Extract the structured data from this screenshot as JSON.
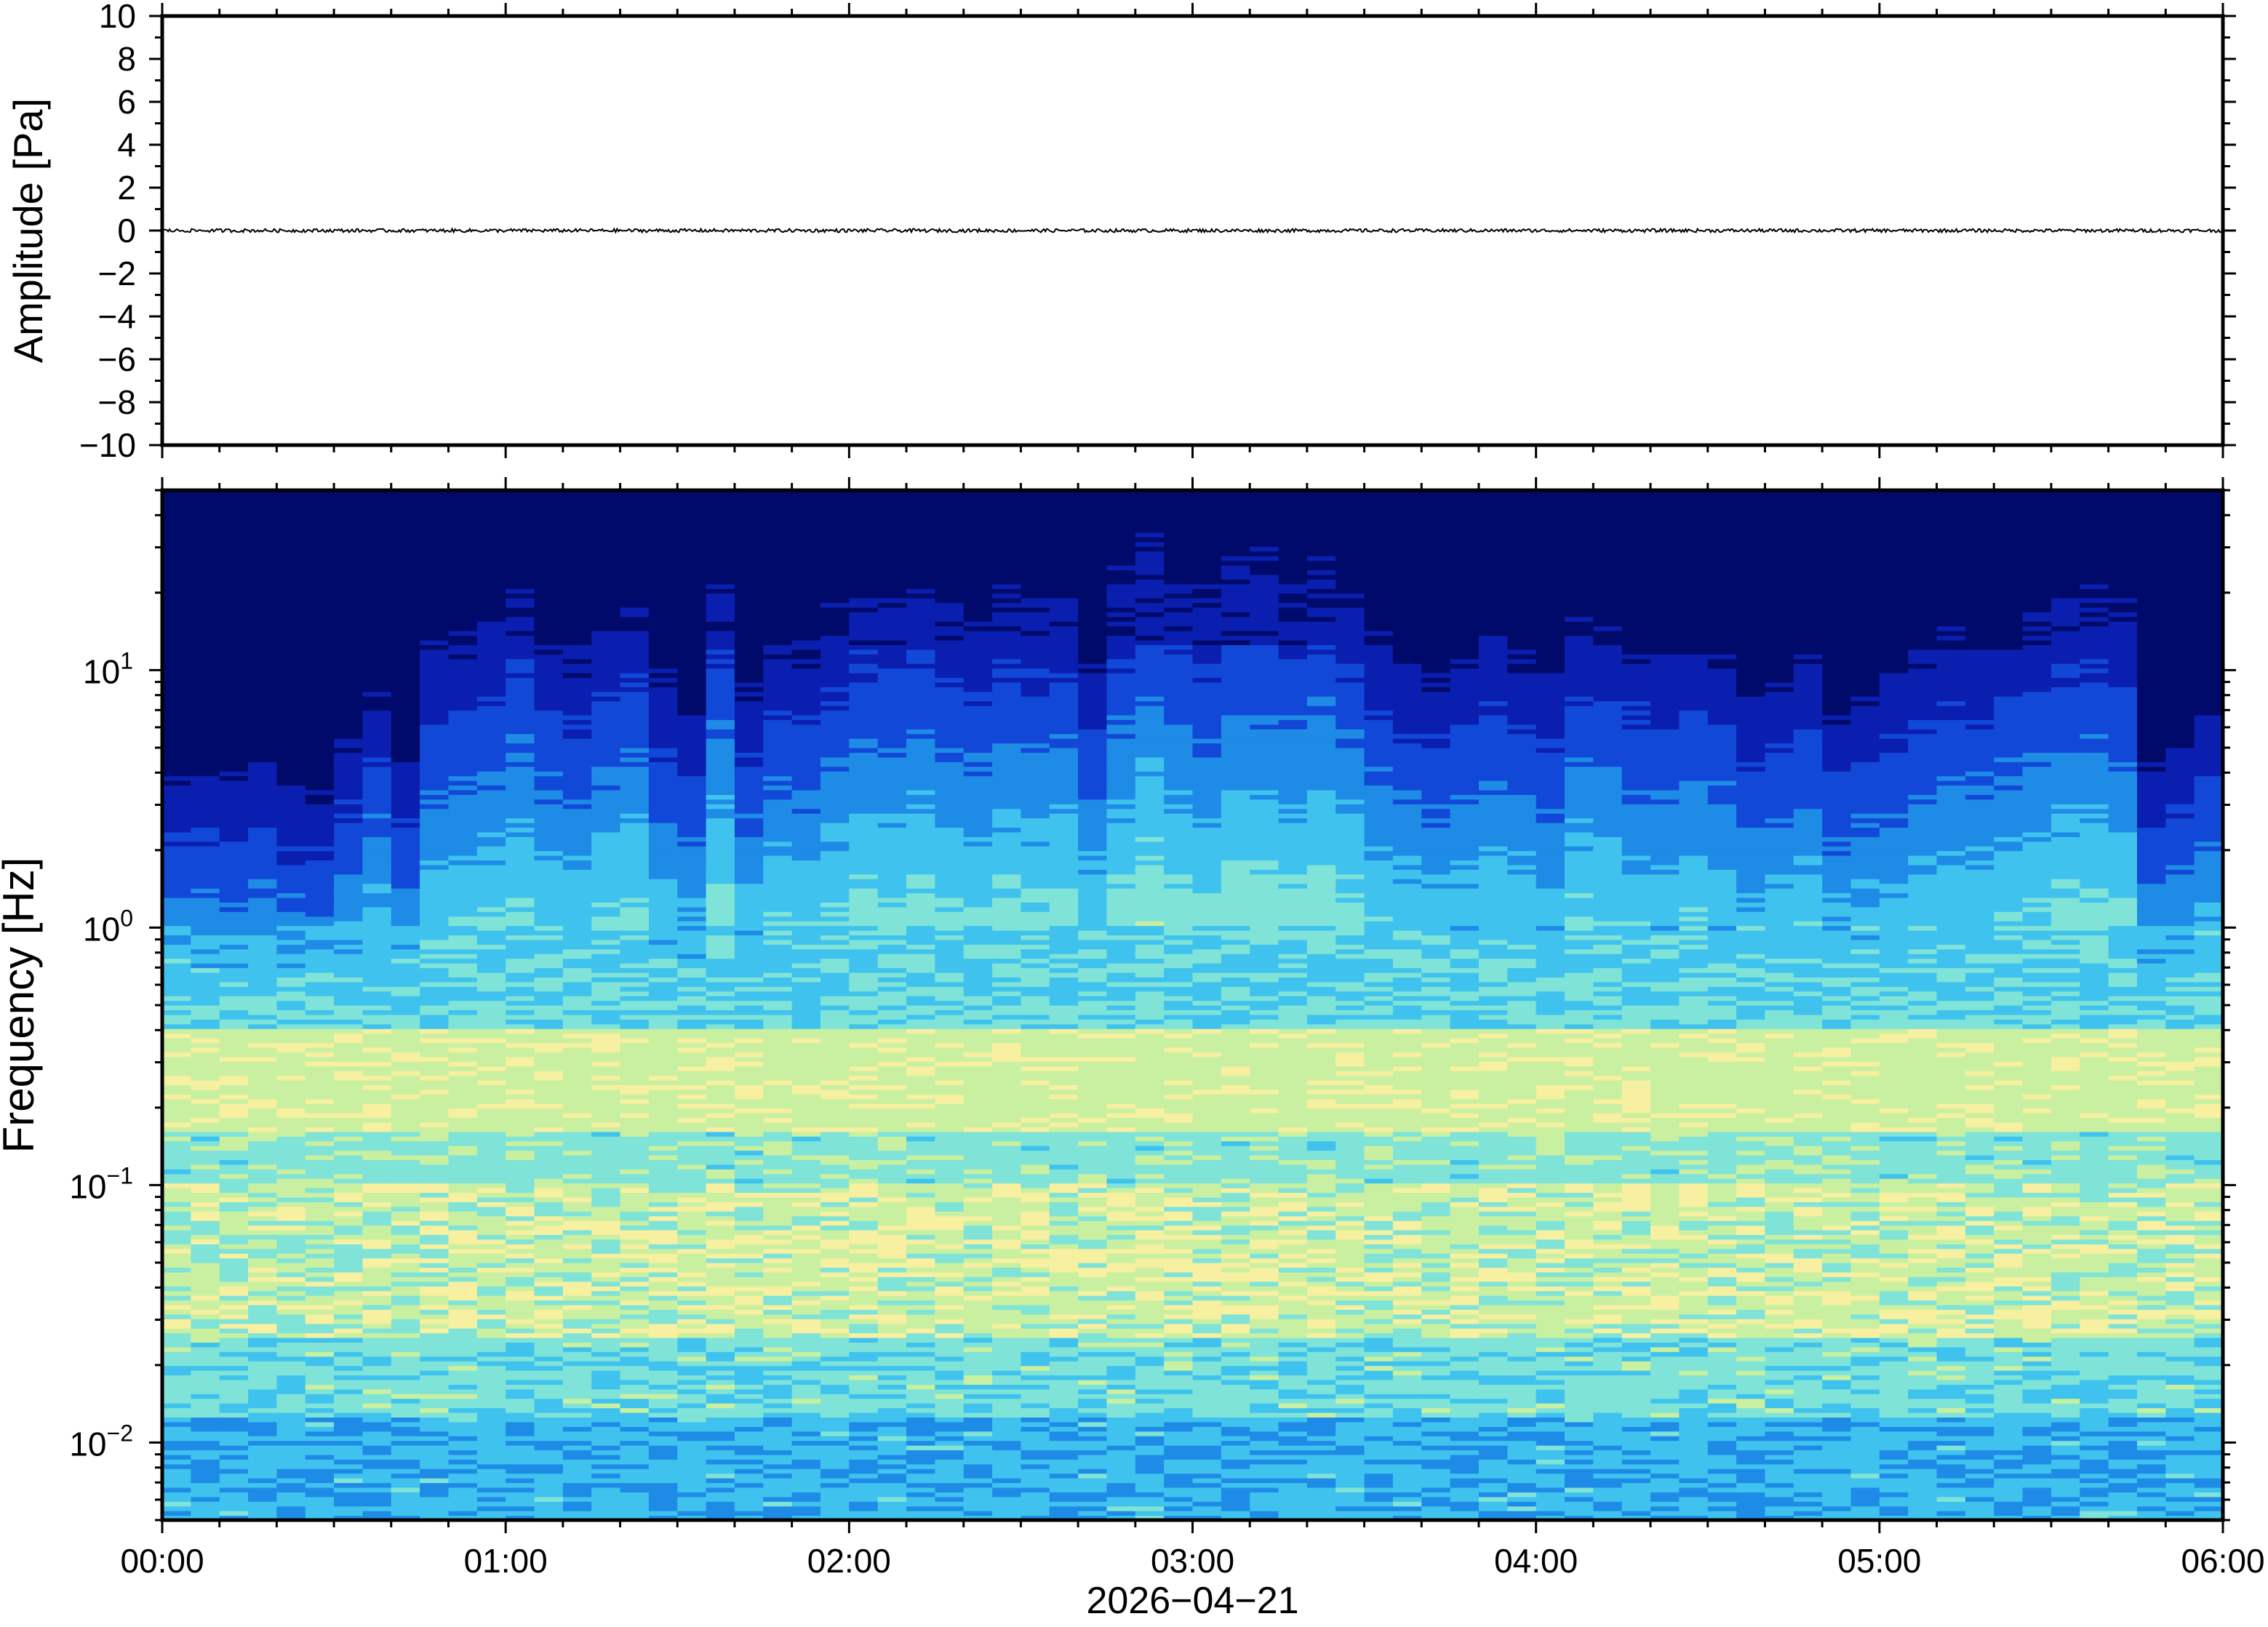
{
  "chart_data": [
    {
      "type": "line",
      "panel": "waveform",
      "ylabel": "Amplitude [Pa]",
      "ylim": [
        -10,
        10
      ],
      "yticks": [
        10,
        8,
        6,
        4,
        2,
        0,
        -2,
        -4,
        -6,
        -8,
        -10
      ],
      "ytick_labels": [
        "10",
        "8",
        "6",
        "4",
        "2",
        "0",
        "−2",
        "−4",
        "−6",
        "−8",
        "−10"
      ],
      "xlim_hours": [
        0,
        6
      ],
      "trace_color": "#000000",
      "series": [
        {
          "values_description_free_noise_amplitude": 0.08
        }
      ]
    },
    {
      "type": "heatmap",
      "panel": "spectrogram",
      "ylabel": "Frequency [Hz]",
      "yscale": "log",
      "ylim": [
        0.005,
        50
      ],
      "ytick_labels": [
        {
          "base": "10",
          "exp": "1",
          "value": 10
        },
        {
          "base": "10",
          "exp": "0",
          "value": 1
        },
        {
          "base": "10",
          "exp": "−1",
          "value": 0.1
        },
        {
          "base": "10",
          "exp": "−2",
          "value": 0.01
        }
      ],
      "xlabel": "2026−04−21",
      "xtick_labels": [
        "00:00",
        "01:00",
        "02:00",
        "03:00",
        "04:00",
        "05:00",
        "06:00"
      ],
      "colormap": [
        "#000a6b",
        "#0a1fb0",
        "#1248d8",
        "#1e8be6",
        "#3fc3ee",
        "#7fe3d8",
        "#c8f0a0",
        "#f6f0a0",
        "#f8d070",
        "#f0a040"
      ],
      "columns": 72,
      "column_activity": [
        0.2,
        0.22,
        0.18,
        0.25,
        0.15,
        0.12,
        0.3,
        0.45,
        0.25,
        0.55,
        0.6,
        0.62,
        0.7,
        0.58,
        0.55,
        0.62,
        0.68,
        0.5,
        0.4,
        0.75,
        0.45,
        0.6,
        0.55,
        0.65,
        0.72,
        0.7,
        0.75,
        0.68,
        0.65,
        0.72,
        0.68,
        0.7,
        0.55,
        0.75,
        0.85,
        0.75,
        0.7,
        0.8,
        0.78,
        0.75,
        0.8,
        0.72,
        0.6,
        0.55,
        0.5,
        0.55,
        0.6,
        0.55,
        0.5,
        0.65,
        0.62,
        0.58,
        0.55,
        0.6,
        0.55,
        0.45,
        0.5,
        0.55,
        0.4,
        0.45,
        0.5,
        0.55,
        0.6,
        0.58,
        0.62,
        0.65,
        0.7,
        0.72,
        0.68,
        0.25,
        0.3,
        0.4
      ]
    }
  ]
}
